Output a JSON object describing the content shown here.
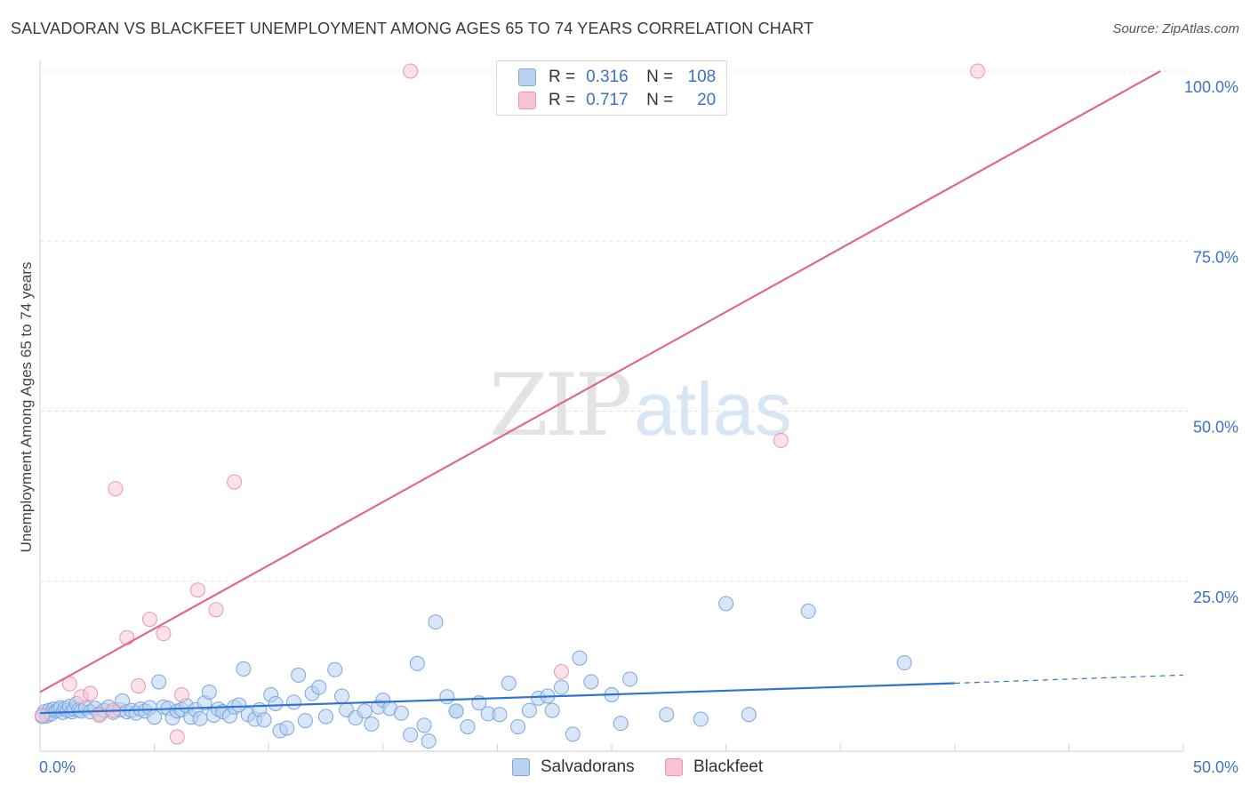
{
  "header": {
    "title": "SALVADORAN VS BLACKFEET UNEMPLOYMENT AMONG AGES 65 TO 74 YEARS CORRELATION CHART",
    "source": "Source: ZipAtlas.com"
  },
  "watermark": {
    "zip": "ZIP",
    "atlas": "atlas"
  },
  "legend": {
    "r_label": "R =",
    "n_label": "N =",
    "rows": [
      {
        "name": "Salvadorans",
        "r": "0.316",
        "n": "108"
      },
      {
        "name": "Blackfeet",
        "r": "0.717",
        "n": "20"
      }
    ]
  },
  "bottom_legend": {
    "items": [
      {
        "label": "Salvadorans"
      },
      {
        "label": "Blackfeet"
      }
    ]
  },
  "colors": {
    "salvadoran_fill": "#b8d2f0",
    "salvadoran_stroke": "#7aa7de",
    "salvadoran_line": "#2f74d0",
    "blackfeet_fill": "#f7c3d3",
    "blackfeet_stroke": "#ea96b1",
    "blackfeet_line": "#e06890",
    "grid": "#e2e2e2",
    "tick_label": "#3a73c4"
  },
  "chart_data": {
    "type": "scatter",
    "title": "SALVADORAN VS BLACKFEET UNEMPLOYMENT AMONG AGES 65 TO 74 YEARS CORRELATION CHART",
    "xlabel": "",
    "ylabel": "Unemployment Among Ages 65 to 74 years",
    "xlim": [
      0,
      50
    ],
    "ylim": [
      0,
      100
    ],
    "x_tick_labels": [
      "0.0%",
      "50.0%"
    ],
    "y_tick_labels": [
      "100.0%",
      "75.0%",
      "50.0%",
      "25.0%"
    ],
    "y_tick_values": [
      100,
      75,
      50,
      25
    ],
    "grid": true,
    "series": [
      {
        "name": "Salvadorans",
        "r": 0.316,
        "n": 108,
        "trend": {
          "x0": 0,
          "y0": 5.6,
          "x1": 40,
          "y1": 10.0,
          "dashed_to": 50,
          "dashed_y": 11.2
        },
        "points": [
          [
            0.2,
            5.8
          ],
          [
            0.3,
            5.2
          ],
          [
            0.4,
            6.0
          ],
          [
            0.5,
            5.5
          ],
          [
            0.6,
            6.2
          ],
          [
            0.7,
            5.9
          ],
          [
            0.8,
            6.1
          ],
          [
            0.9,
            6.4
          ],
          [
            1.0,
            5.7
          ],
          [
            1.1,
            6.3
          ],
          [
            1.2,
            6.0
          ],
          [
            1.3,
            6.6
          ],
          [
            1.4,
            5.8
          ],
          [
            1.5,
            6.2
          ],
          [
            1.6,
            7.0
          ],
          [
            1.7,
            6.1
          ],
          [
            1.8,
            5.9
          ],
          [
            2.0,
            6.4
          ],
          [
            2.2,
            5.8
          ],
          [
            2.4,
            6.3
          ],
          [
            2.6,
            5.5
          ],
          [
            2.8,
            6.0
          ],
          [
            3.0,
            6.5
          ],
          [
            3.2,
            5.7
          ],
          [
            3.5,
            6.1
          ],
          [
            3.6,
            7.4
          ],
          [
            3.8,
            5.8
          ],
          [
            4.0,
            6.0
          ],
          [
            4.2,
            5.6
          ],
          [
            4.4,
            6.2
          ],
          [
            4.6,
            5.9
          ],
          [
            4.8,
            6.4
          ],
          [
            5.0,
            5.0
          ],
          [
            5.2,
            10.2
          ],
          [
            5.4,
            6.5
          ],
          [
            5.6,
            6.3
          ],
          [
            5.8,
            4.9
          ],
          [
            6.0,
            5.9
          ],
          [
            6.2,
            6.1
          ],
          [
            6.4,
            6.7
          ],
          [
            6.6,
            5.0
          ],
          [
            6.8,
            6.1
          ],
          [
            7.0,
            4.8
          ],
          [
            7.2,
            7.1
          ],
          [
            7.4,
            8.7
          ],
          [
            7.6,
            5.3
          ],
          [
            7.8,
            6.2
          ],
          [
            8.0,
            5.8
          ],
          [
            8.3,
            5.2
          ],
          [
            8.5,
            6.5
          ],
          [
            8.7,
            6.8
          ],
          [
            8.9,
            12.1
          ],
          [
            9.1,
            5.4
          ],
          [
            9.4,
            4.7
          ],
          [
            9.6,
            6.1
          ],
          [
            9.8,
            4.6
          ],
          [
            10.1,
            8.3
          ],
          [
            10.3,
            7.0
          ],
          [
            10.5,
            3.0
          ],
          [
            10.8,
            3.4
          ],
          [
            11.1,
            7.2
          ],
          [
            11.3,
            11.2
          ],
          [
            11.6,
            4.5
          ],
          [
            11.9,
            8.5
          ],
          [
            12.2,
            9.4
          ],
          [
            12.5,
            5.1
          ],
          [
            12.9,
            12.0
          ],
          [
            13.2,
            8.1
          ],
          [
            13.4,
            6.1
          ],
          [
            13.8,
            4.9
          ],
          [
            14.2,
            5.9
          ],
          [
            14.5,
            4.0
          ],
          [
            14.8,
            6.5
          ],
          [
            15.0,
            7.5
          ],
          [
            15.3,
            6.3
          ],
          [
            15.8,
            5.6
          ],
          [
            16.2,
            2.4
          ],
          [
            16.5,
            12.9
          ],
          [
            16.8,
            3.8
          ],
          [
            17.0,
            1.5
          ],
          [
            17.3,
            19.0
          ],
          [
            17.8,
            8.0
          ],
          [
            18.2,
            5.9
          ],
          [
            18.7,
            3.6
          ],
          [
            19.2,
            7.1
          ],
          [
            19.6,
            5.5
          ],
          [
            20.1,
            5.4
          ],
          [
            20.5,
            10.0
          ],
          [
            20.9,
            3.6
          ],
          [
            21.4,
            6.0
          ],
          [
            21.8,
            7.8
          ],
          [
            22.2,
            8.1
          ],
          [
            22.8,
            9.4
          ],
          [
            23.3,
            2.5
          ],
          [
            23.6,
            13.7
          ],
          [
            24.1,
            10.2
          ],
          [
            25.0,
            8.3
          ],
          [
            25.4,
            4.1
          ],
          [
            25.8,
            10.6
          ],
          [
            27.4,
            5.4
          ],
          [
            28.9,
            4.7
          ],
          [
            30.0,
            21.7
          ],
          [
            31.0,
            5.4
          ],
          [
            33.6,
            20.6
          ],
          [
            37.8,
            13.0
          ],
          [
            18.2,
            5.9
          ],
          [
            0.1,
            5.1
          ],
          [
            22.4,
            6.0
          ]
        ]
      },
      {
        "name": "Blackfeet",
        "r": 0.717,
        "n": 20,
        "trend": {
          "x0": 0,
          "y0": 8.7,
          "x1": 49,
          "y1": 100
        },
        "points": [
          [
            0.1,
            5.3
          ],
          [
            1.3,
            9.9
          ],
          [
            1.8,
            8.0
          ],
          [
            2.2,
            8.5
          ],
          [
            2.6,
            5.3
          ],
          [
            3.2,
            6.0
          ],
          [
            3.3,
            38.6
          ],
          [
            3.8,
            16.7
          ],
          [
            4.3,
            9.6
          ],
          [
            4.8,
            19.4
          ],
          [
            5.4,
            17.3
          ],
          [
            6.0,
            2.1
          ],
          [
            6.2,
            8.3
          ],
          [
            6.9,
            23.7
          ],
          [
            7.7,
            20.8
          ],
          [
            8.5,
            39.6
          ],
          [
            16.2,
            100.0
          ],
          [
            22.8,
            11.7
          ],
          [
            32.4,
            45.7
          ],
          [
            41.0,
            100.0
          ]
        ]
      }
    ]
  }
}
